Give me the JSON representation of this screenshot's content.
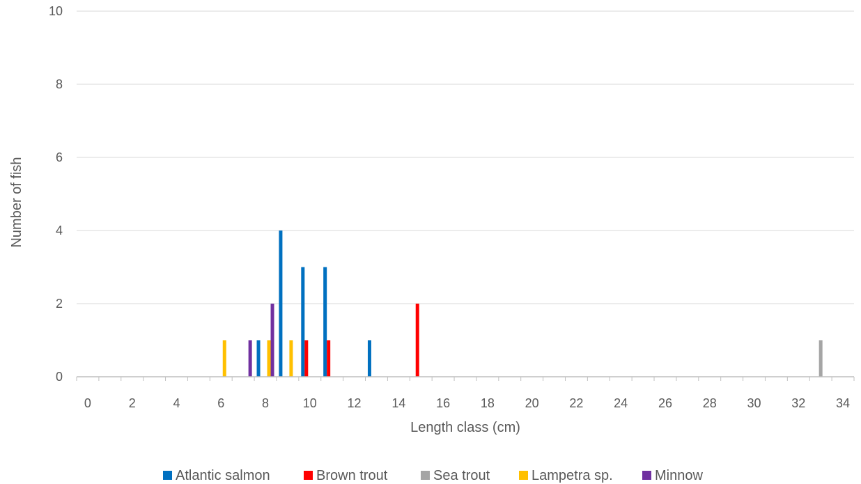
{
  "chart_data": {
    "type": "bar",
    "title": "",
    "xlabel": "Length class (cm)",
    "ylabel": "Number of fish",
    "xlim": [
      -0.5,
      34.5
    ],
    "ylim": [
      0,
      10
    ],
    "x_ticks": [
      0,
      2,
      4,
      6,
      8,
      10,
      12,
      14,
      16,
      18,
      20,
      22,
      24,
      26,
      28,
      30,
      32,
      34
    ],
    "y_ticks": [
      0,
      2,
      4,
      6,
      8,
      10
    ],
    "grid": "horizontal",
    "legend_position": "bottom",
    "categories": [
      0,
      1,
      2,
      3,
      4,
      5,
      6,
      7,
      8,
      9,
      10,
      11,
      12,
      13,
      14,
      15,
      16,
      17,
      18,
      19,
      20,
      21,
      22,
      23,
      24,
      25,
      26,
      27,
      28,
      29,
      30,
      31,
      32,
      33,
      34
    ],
    "series": [
      {
        "name": "Atlantic salmon",
        "color": "#0070C0",
        "points": [
          {
            "x": 8,
            "y": 1
          },
          {
            "x": 9,
            "y": 4
          },
          {
            "x": 10,
            "y": 3
          },
          {
            "x": 11,
            "y": 3
          },
          {
            "x": 13,
            "y": 1
          }
        ]
      },
      {
        "name": "Brown trout",
        "color": "#FF0000",
        "points": [
          {
            "x": 10,
            "y": 1
          },
          {
            "x": 11,
            "y": 1
          },
          {
            "x": 15,
            "y": 2
          }
        ]
      },
      {
        "name": "Sea trout",
        "color": "#A5A5A5",
        "points": [
          {
            "x": 33,
            "y": 1
          }
        ]
      },
      {
        "name": "Lampetra sp.",
        "color": "#FFC000",
        "points": [
          {
            "x": 6,
            "y": 1
          },
          {
            "x": 8,
            "y": 1
          },
          {
            "x": 9,
            "y": 1
          }
        ]
      },
      {
        "name": "Minnow",
        "color": "#7030A0",
        "points": [
          {
            "x": 7,
            "y": 1
          },
          {
            "x": 8,
            "y": 2
          }
        ]
      }
    ]
  }
}
